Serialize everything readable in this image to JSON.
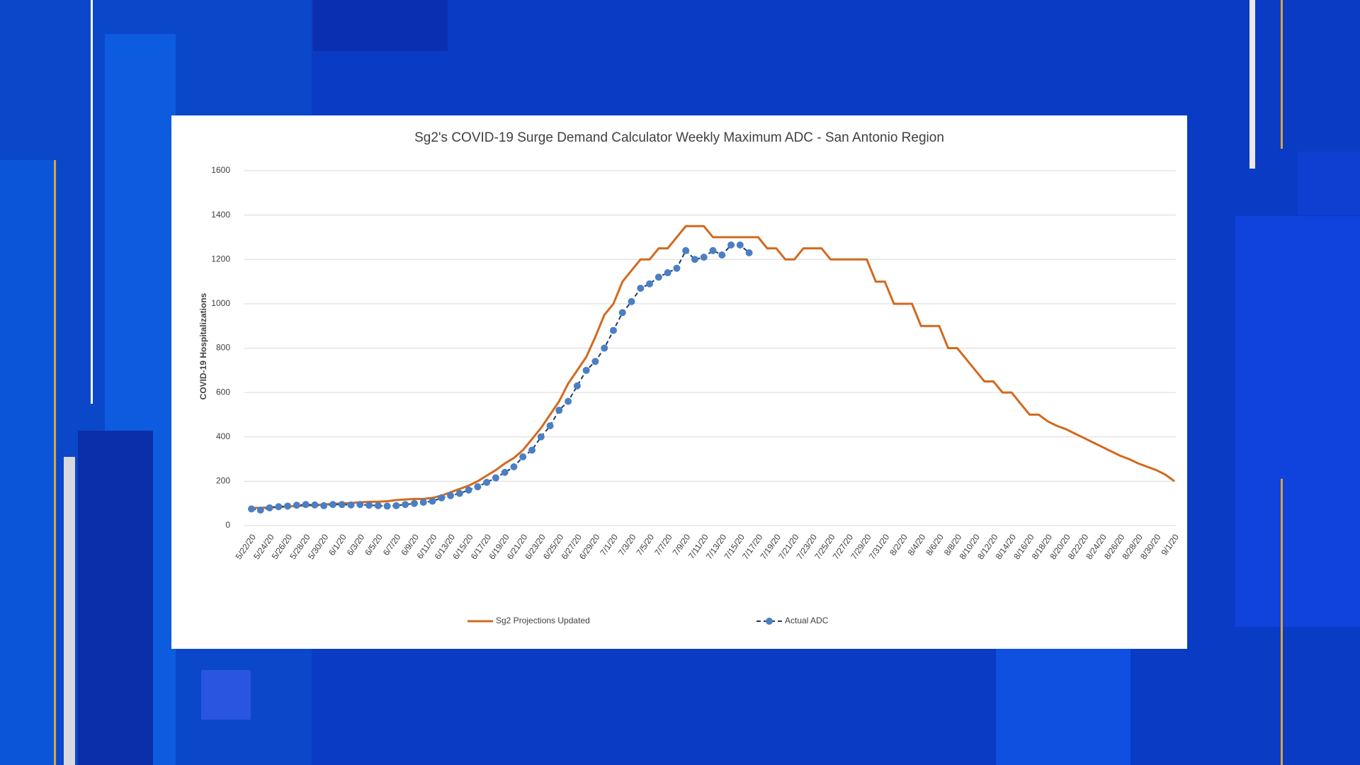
{
  "chart_data": {
    "type": "line",
    "title": "Sg2's COVID-19 Surge Demand Calculator Weekly Maximum ADC - San Antonio Region",
    "y_label": "COVID-19 Hospitalizations",
    "categories": [
      "5/22/20",
      null,
      "5/24/20",
      null,
      "5/26/20",
      null,
      "5/28/20",
      null,
      "5/30/20",
      null,
      "6/1/20",
      null,
      "6/3/20",
      null,
      "6/5/20",
      null,
      "6/7/20",
      null,
      "6/9/20",
      null,
      "6/11/20",
      null,
      "6/13/20",
      null,
      "6/15/20",
      null,
      "6/17/20",
      null,
      "6/19/20",
      null,
      "6/21/20",
      null,
      "6/23/20",
      null,
      "6/25/20",
      null,
      "6/27/20",
      null,
      "6/29/20",
      null,
      "7/1/20",
      null,
      "7/3/20",
      null,
      "7/5/20",
      null,
      "7/7/20",
      null,
      "7/9/20",
      null,
      "7/11/20",
      null,
      "7/13/20",
      null,
      "7/15/20",
      null,
      "7/17/20",
      null,
      "7/19/20",
      null,
      "7/21/20",
      null,
      "7/23/20",
      null,
      "7/25/20",
      null,
      "7/27/20",
      null,
      "7/29/20",
      null,
      "7/31/20",
      null,
      "8/2/20",
      null,
      "8/4/20",
      null,
      "8/6/20",
      null,
      "8/8/20",
      null,
      "8/10/20",
      null,
      "8/12/20",
      null,
      "8/14/20",
      null,
      "8/16/20",
      null,
      "8/18/20",
      null,
      "8/20/20",
      null,
      "8/22/20",
      null,
      "8/24/20",
      null,
      "8/26/20",
      null,
      "8/28/20",
      null,
      "8/30/20",
      null,
      "9/1/20"
    ],
    "series": [
      {
        "name": "Sg2 Projections Updated",
        "color": "#d2691e",
        "line_style": "solid",
        "marker": "none",
        "values": [
          80,
          80,
          82,
          84,
          86,
          88,
          90,
          92,
          95,
          98,
          100,
          102,
          105,
          107,
          108,
          110,
          115,
          118,
          120,
          120,
          125,
          135,
          150,
          165,
          180,
          200,
          225,
          250,
          280,
          305,
          340,
          390,
          440,
          500,
          560,
          640,
          700,
          760,
          850,
          950,
          1000,
          1100,
          1150,
          1200,
          1200,
          1250,
          1250,
          1300,
          1350,
          1350,
          1350,
          1300,
          1300,
          1300,
          1300,
          1300,
          1300,
          1250,
          1250,
          1200,
          1200,
          1250,
          1250,
          1250,
          1200,
          1200,
          1200,
          1200,
          1200,
          1100,
          1100,
          1000,
          1000,
          1000,
          900,
          900,
          900,
          800,
          800,
          750,
          700,
          650,
          650,
          600,
          600,
          550,
          500,
          500,
          470,
          450,
          435,
          415,
          395,
          375,
          355,
          335,
          315,
          300,
          280,
          265,
          250,
          230,
          200
        ]
      },
      {
        "name": "Actual ADC",
        "color": "#4a7fc4",
        "line_color": "#1f3a6b",
        "line_style": "dashed",
        "marker": "circle",
        "values": [
          75,
          70,
          80,
          85,
          88,
          92,
          95,
          93,
          90,
          95,
          95,
          93,
          95,
          92,
          90,
          88,
          90,
          95,
          100,
          105,
          110,
          125,
          135,
          145,
          160,
          175,
          195,
          215,
          240,
          265,
          310,
          340,
          400,
          450,
          520,
          560,
          630,
          700,
          740,
          800,
          880,
          960,
          1010,
          1070,
          1090,
          1120,
          1140,
          1160,
          1240,
          1200,
          1210,
          1240,
          1220,
          1265,
          1265,
          1230,
          null,
          null,
          null,
          null,
          null,
          null,
          null,
          null,
          null,
          null,
          null,
          null,
          null,
          null,
          null,
          null,
          null,
          null,
          null,
          null,
          null,
          null,
          null,
          null,
          null,
          null,
          null,
          null,
          null,
          null,
          null,
          null,
          null,
          null,
          null,
          null,
          null,
          null,
          null,
          null,
          null,
          null,
          null,
          null,
          null,
          null,
          null
        ]
      }
    ],
    "ylim": [
      0,
      1600
    ],
    "yticks": [
      0,
      200,
      400,
      600,
      800,
      1000,
      1200,
      1400,
      1600
    ],
    "grid": true,
    "legend": "bottom"
  }
}
